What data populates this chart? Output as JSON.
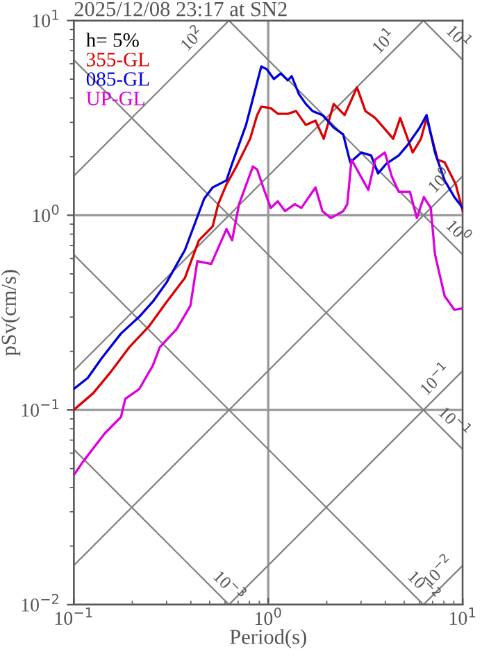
{
  "chart_data": {
    "type": "line",
    "title": "2025/12/08 23:17 at SN2",
    "xlabel": "Period(s)",
    "ylabel": "pSv(cm/s)",
    "legend_title": "h= 5%",
    "legend": "top left",
    "log": "xy",
    "grid": true,
    "xlim": [
      0.1,
      10
    ],
    "ylim": [
      0.01,
      10
    ],
    "xticks": [
      {
        "value": 0.1,
        "label": "10$^{−1}$"
      },
      {
        "value": 1,
        "label": "10$^{0}$"
      },
      {
        "value": 10,
        "label": "10$^{1}$"
      }
    ],
    "yticks": [
      {
        "value": 0.01,
        "label": "10$^{−2}$"
      },
      {
        "value": 0.1,
        "label": "10$^{−1}$"
      },
      {
        "value": 1,
        "label": "10$^{0}$"
      },
      {
        "value": 10,
        "label": "10$^{1}$"
      }
    ],
    "series": [
      {
        "color": "#808080",
        "x": [
          0.1,
          0.628
        ],
        "values": [
          1.59,
          10
        ]
      },
      {
        "color": "#808080",
        "x": [
          0.1,
          6.28
        ],
        "values": [
          0.159,
          10
        ]
      },
      {
        "color": "#808080",
        "x": [
          0.1,
          10
        ],
        "values": [
          0.0159,
          1.59
        ]
      },
      {
        "color": "#808080",
        "x": [
          0.628,
          10
        ],
        "values": [
          0.01,
          0.159
        ]
      },
      {
        "color": "#808080",
        "x": [
          6.28,
          10
        ],
        "values": [
          0.01,
          0.0159
        ]
      },
      {
        "color": "#808080",
        "x": [
          6.28,
          10
        ],
        "values": [
          10,
          6.28
        ]
      },
      {
        "color": "#808080",
        "x": [
          0.628,
          10
        ],
        "values": [
          10,
          0.628
        ]
      },
      {
        "color": "#808080",
        "x": [
          0.1,
          10
        ],
        "values": [
          6.28,
          0.0628
        ]
      },
      {
        "color": "#808080",
        "x": [
          0.1,
          6.28
        ],
        "values": [
          0.628,
          0.01
        ]
      },
      {
        "color": "#808080",
        "x": [
          0.1,
          0.628
        ],
        "values": [
          0.0628,
          0.01
        ]
      },
      {
        "name": "355-GL",
        "color": "#dd0000",
        "x": [
          0.1,
          0.126,
          0.156,
          0.193,
          0.243,
          0.301,
          0.373,
          0.44,
          0.518,
          0.553,
          0.61,
          0.686,
          0.807,
          0.877,
          0.921,
          1.03,
          1.12,
          1.26,
          1.39,
          1.56,
          1.75,
          1.93,
          2.17,
          2.47,
          2.86,
          3.16,
          3.55,
          3.98,
          4.39,
          4.77,
          5.53,
          6.1,
          6.52,
          7.43,
          8.07,
          9.21,
          10
        ],
        "values": [
          0.1,
          0.122,
          0.158,
          0.21,
          0.268,
          0.36,
          0.477,
          0.743,
          0.877,
          1.14,
          1.44,
          1.78,
          2.47,
          3.27,
          3.61,
          3.55,
          3.32,
          3.32,
          3.43,
          2.91,
          3.06,
          2.47,
          3.73,
          3.27,
          4.54,
          3.43,
          3.16,
          2.77,
          2.47,
          3.16,
          2.1,
          2.47,
          3.16,
          1.93,
          1.87,
          1.44,
          1.05
        ]
      },
      {
        "name": "085-GL",
        "color": "#0000dd",
        "x": [
          0.1,
          0.118,
          0.139,
          0.175,
          0.217,
          0.255,
          0.301,
          0.373,
          0.44,
          0.469,
          0.518,
          0.61,
          0.652,
          0.769,
          0.849,
          0.921,
          0.984,
          1.07,
          1.16,
          1.26,
          1.32,
          1.44,
          1.56,
          1.69,
          1.9,
          2.17,
          2.43,
          2.64,
          3.01,
          3.38,
          3.67,
          4.05,
          4.69,
          5.18,
          6.01,
          6.52,
          7.2,
          8.07,
          9.06,
          10
        ],
        "values": [
          0.128,
          0.146,
          0.184,
          0.247,
          0.301,
          0.36,
          0.454,
          0.663,
          1.03,
          1.22,
          1.39,
          1.51,
          1.84,
          2.91,
          4.25,
          5.81,
          5.62,
          5.01,
          5.35,
          4.93,
          5.18,
          4.18,
          3.73,
          3.43,
          3.27,
          2.82,
          2.6,
          1.87,
          2.1,
          2.03,
          1.64,
          1.84,
          2.03,
          2.28,
          2.82,
          3.27,
          2.1,
          1.51,
          1.24,
          1.09
        ]
      },
      {
        "name": "UP-GL",
        "color": "#dd00dd",
        "x": [
          0.1,
          0.112,
          0.144,
          0.175,
          0.184,
          0.217,
          0.255,
          0.277,
          0.338,
          0.398,
          0.432,
          0.509,
          0.61,
          0.652,
          0.708,
          0.834,
          0.877,
          0.952,
          1.03,
          1.12,
          1.22,
          1.37,
          1.48,
          1.75,
          1.9,
          2.1,
          2.43,
          2.55,
          2.68,
          3.27,
          3.55,
          3.98,
          4.32,
          4.69,
          5.35,
          5.81,
          6.31,
          6.85,
          7.2,
          8.07,
          9.06,
          9.84
        ],
        "values": [
          0.0462,
          0.0545,
          0.0756,
          0.092,
          0.114,
          0.128,
          0.169,
          0.21,
          0.26,
          0.343,
          0.581,
          0.562,
          0.849,
          0.743,
          1.14,
          1.78,
          1.72,
          1.35,
          1.09,
          1.18,
          1.05,
          1.14,
          1.09,
          1.39,
          1.05,
          0.968,
          1.05,
          1.14,
          1.93,
          1.35,
          1.93,
          2.1,
          1.58,
          1.32,
          1.32,
          0.968,
          1.24,
          1.09,
          0.631,
          0.385,
          0.327,
          0.332
        ]
      }
    ],
    "annotations": [
      {
        "text": "10$^{2}$",
        "x": 0.454,
        "y": 7.23
      },
      {
        "text": "10$^{1}$",
        "x": 4.39,
        "y": 7.0
      },
      {
        "text": "10$^{1}$",
        "x": 8.49,
        "y": 7.4
      },
      {
        "text": "10$^{0}$",
        "x": 8.49,
        "y": 1.35
      },
      {
        "text": "10$^{0}$",
        "x": 8.49,
        "y": 0.74
      },
      {
        "text": "10$^{−1}$",
        "x": 8.07,
        "y": 0.1285
      },
      {
        "text": "10$^{−1}$",
        "x": 8.07,
        "y": 0.0778
      },
      {
        "text": "10$^{−2}$",
        "x": 8.35,
        "y": 0.01327
      },
      {
        "text": "10$^{−2}$",
        "x": 5.62,
        "y": 0.01117
      },
      {
        "text": "10$^{−3}$",
        "x": 0.562,
        "y": 0.01117
      }
    ]
  }
}
